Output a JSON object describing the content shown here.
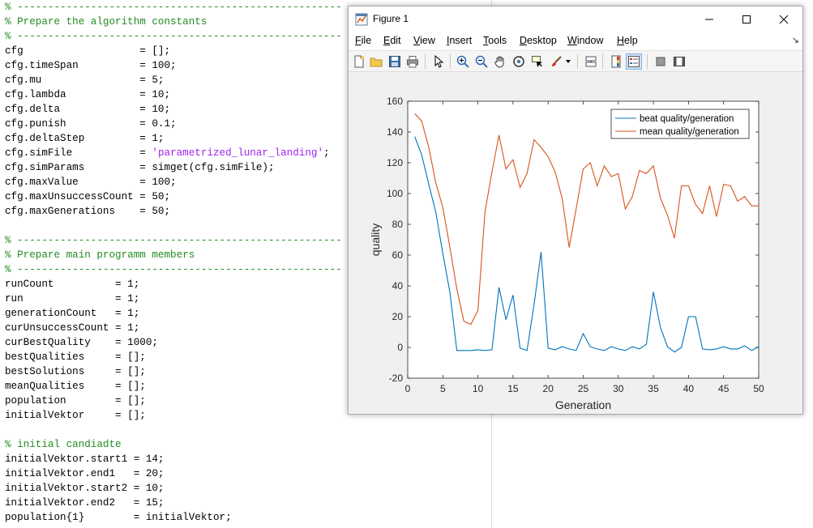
{
  "editor": {
    "lines": [
      {
        "text": "% -----------------------------------------------------",
        "kind": "comment"
      },
      {
        "text": "% Prepare the algorithm constants",
        "kind": "comment"
      },
      {
        "text": "% -----------------------------------------------------",
        "kind": "comment"
      },
      {
        "text": "cfg                   = [];"
      },
      {
        "text": "cfg.timeSpan          = 100;"
      },
      {
        "text": "cfg.mu                = 5;"
      },
      {
        "text": "cfg.lambda            = 10;"
      },
      {
        "text": "cfg.delta             = 10;"
      },
      {
        "text": "cfg.punish            = 0.1;"
      },
      {
        "text": "cfg.deltaStep         = 1;"
      },
      {
        "text": "cfg.simFile           = ",
        "string": "'parametrized_lunar_landing'",
        "suffix": ";"
      },
      {
        "text": "cfg.simParams         = simget(cfg.simFile);"
      },
      {
        "text": "cfg.maxValue          = 100;"
      },
      {
        "text": "cfg.maxUnsuccessCount = 50;"
      },
      {
        "text": "cfg.maxGenerations    = 50;"
      },
      {
        "text": ""
      },
      {
        "text": "% -----------------------------------------------------",
        "kind": "comment"
      },
      {
        "text": "% Prepare main programm members",
        "kind": "comment"
      },
      {
        "text": "% -----------------------------------------------------",
        "kind": "comment"
      },
      {
        "text": "runCount          = 1;"
      },
      {
        "text": "run               = 1;"
      },
      {
        "text": "generationCount   = 1;"
      },
      {
        "text": "curUnsuccessCount = 1;"
      },
      {
        "text": "curBestQuality    = 1000;"
      },
      {
        "text": "bestQualities     = [];"
      },
      {
        "text": "bestSolutions     = [];"
      },
      {
        "text": "meanQualities     = [];"
      },
      {
        "text": "population        = [];"
      },
      {
        "text": "initialVektor     = [];"
      },
      {
        "text": ""
      },
      {
        "text": "% initial candiadte",
        "kind": "comment"
      },
      {
        "text": "initialVektor.start1 = 14;"
      },
      {
        "text": "initialVektor.end1   = 20;"
      },
      {
        "text": "initialVektor.start2 = 10;"
      },
      {
        "text": "initialVektor.end2   = 15;"
      },
      {
        "text": "population{1}        = initialVektor;"
      }
    ]
  },
  "figure": {
    "title": "Figure 1",
    "menu": [
      {
        "label": "File",
        "accel": "F"
      },
      {
        "label": "Edit",
        "accel": "E"
      },
      {
        "label": "View",
        "accel": "V"
      },
      {
        "label": "Insert",
        "accel": "I"
      },
      {
        "label": "Tools",
        "accel": "T"
      },
      {
        "label": "Desktop",
        "accel": "D"
      },
      {
        "label": "Window",
        "accel": "W"
      },
      {
        "label": "Help",
        "accel": "H"
      }
    ],
    "toolbar_icons": [
      "new-figure-icon",
      "open-file-icon",
      "save-icon",
      "print-icon",
      "select-arrow-icon",
      "zoom-in-icon",
      "zoom-out-icon",
      "pan-hand-icon",
      "rotate-3d-icon",
      "data-cursor-icon",
      "brush-icon",
      "brush-dropdown-icon",
      "link-plot-icon",
      "colorbar-icon",
      "legend-icon",
      "hide-plot-tools-icon",
      "show-plot-tools-icon"
    ]
  },
  "chart_data": {
    "type": "line",
    "title": "",
    "xlabel": "Generation",
    "ylabel": "quality",
    "xlim": [
      0,
      50
    ],
    "ylim": [
      -20,
      160
    ],
    "xticks": [
      0,
      5,
      10,
      15,
      20,
      25,
      30,
      35,
      40,
      45,
      50
    ],
    "yticks": [
      -20,
      0,
      20,
      40,
      60,
      80,
      100,
      120,
      140,
      160
    ],
    "legend_position": "top-right",
    "grid": false,
    "series": [
      {
        "name": "beat quality/generation",
        "color": "#0072bd",
        "x": [
          1,
          2,
          3,
          4,
          5,
          6,
          7,
          8,
          9,
          10,
          11,
          12,
          13,
          14,
          15,
          16,
          17,
          18,
          19,
          20,
          21,
          22,
          23,
          24,
          25,
          26,
          27,
          28,
          29,
          30,
          31,
          32,
          33,
          34,
          35,
          36,
          37,
          38,
          39,
          40,
          41,
          42,
          43,
          44,
          45,
          46,
          47,
          48,
          49,
          50
        ],
        "y": [
          137,
          125,
          106,
          88,
          61,
          36,
          -2,
          -2,
          -2,
          -1.5,
          -2,
          -1.5,
          39,
          18,
          34,
          -0.5,
          -2,
          28,
          62,
          -0.5,
          -1.5,
          0.5,
          -1,
          -2,
          9,
          0.5,
          -1,
          -2,
          0.5,
          -1,
          -2,
          0.5,
          -1,
          2,
          36,
          13,
          0.5,
          -3,
          0,
          20,
          20,
          -1,
          -1.5,
          -1,
          0.5,
          -1,
          -1,
          1,
          -2,
          0.5
        ]
      },
      {
        "name": "mean quality/generation",
        "color": "#d95319",
        "x": [
          1,
          2,
          3,
          4,
          5,
          6,
          7,
          8,
          9,
          10,
          11,
          12,
          13,
          14,
          15,
          16,
          17,
          18,
          19,
          20,
          21,
          22,
          23,
          24,
          25,
          26,
          27,
          28,
          29,
          30,
          31,
          32,
          33,
          34,
          35,
          36,
          37,
          38,
          39,
          40,
          41,
          42,
          43,
          44,
          45,
          46,
          47,
          48,
          49,
          50
        ],
        "y": [
          152,
          147,
          130,
          107,
          91,
          65,
          38,
          17,
          15,
          24,
          88,
          114,
          138,
          116,
          122,
          104,
          113,
          135,
          130,
          124,
          114,
          97,
          65,
          90,
          116,
          120,
          105,
          118,
          111,
          113,
          90,
          98,
          115,
          113,
          118,
          97,
          86,
          71,
          105,
          105,
          93,
          87,
          105,
          85,
          106,
          105,
          95,
          98,
          92,
          92
        ]
      }
    ]
  }
}
